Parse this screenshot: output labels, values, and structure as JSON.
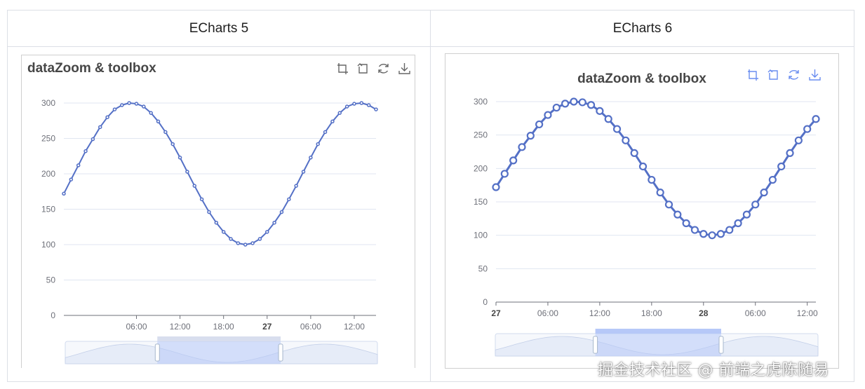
{
  "table": {
    "headers": [
      "ECharts 5",
      "ECharts 6"
    ]
  },
  "watermark": "掘金技术社区 @ 前端之虎陈随易",
  "colors": {
    "v5_line": "#5470c6",
    "v6_line": "#5470c6",
    "v6_toolbox": "#6a8df0",
    "v5_toolbox": "#666666",
    "zoom_fill": "#dbe4ff"
  },
  "toolbox_icons": [
    "zoom-icon",
    "zoom-back-icon",
    "restore-icon",
    "save-image-icon"
  ],
  "chart_data": [
    {
      "type": "line",
      "version": "ECharts 5",
      "title": "dataZoom & toolbox",
      "title_align": "left",
      "ylim": [
        0,
        300
      ],
      "y_ticks": [
        0,
        50,
        100,
        150,
        200,
        250,
        300
      ],
      "x_range_hours": [
        20,
        63
      ],
      "x_tick_hours": [
        30,
        36,
        42,
        48,
        54,
        60
      ],
      "x_tick_labels": [
        "06:00",
        "12:00",
        "18:00",
        "27",
        "06:00",
        "12:00"
      ],
      "x_tick_bold": [
        false,
        false,
        false,
        true,
        false,
        false
      ],
      "x_hours": [
        20,
        21,
        22,
        23,
        24,
        25,
        26,
        27,
        28,
        29,
        30,
        31,
        32,
        33,
        34,
        35,
        36,
        37,
        38,
        39,
        40,
        41,
        42,
        43,
        44,
        45,
        46,
        47,
        48,
        49,
        50,
        51,
        52,
        53,
        54,
        55,
        56,
        57,
        58,
        59,
        60,
        61,
        62,
        63
      ],
      "values": [
        172,
        192,
        212,
        232,
        249,
        266,
        280,
        291,
        297,
        300,
        299,
        295,
        286,
        274,
        259,
        242,
        223,
        203,
        183,
        164,
        146,
        131,
        118,
        108,
        102,
        100,
        102,
        108,
        118,
        131,
        146,
        164,
        183,
        203,
        223,
        242,
        259,
        274,
        286,
        295,
        299,
        300,
        297,
        291
      ],
      "slider": {
        "window_start": 0.295,
        "window_end": 0.69
      }
    },
    {
      "type": "line",
      "version": "ECharts 6",
      "title": "dataZoom & toolbox",
      "title_align": "center",
      "ylim": [
        0,
        300
      ],
      "y_ticks": [
        0,
        50,
        100,
        150,
        200,
        250,
        300
      ],
      "x_range_hours": [
        24,
        61
      ],
      "x_tick_hours": [
        24,
        30,
        36,
        42,
        48,
        54,
        60
      ],
      "x_tick_labels": [
        "27",
        "06:00",
        "12:00",
        "18:00",
        "28",
        "06:00",
        "12:00"
      ],
      "x_tick_bold": [
        true,
        false,
        false,
        false,
        true,
        false,
        false
      ],
      "x_hours": [
        24,
        25,
        26,
        27,
        28,
        29,
        30,
        31,
        32,
        33,
        34,
        35,
        36,
        37,
        38,
        39,
        40,
        41,
        42,
        43,
        44,
        45,
        46,
        47,
        48,
        49,
        50,
        51,
        52,
        53,
        54,
        55,
        56,
        57,
        58,
        59,
        60,
        61
      ],
      "values": [
        172,
        192,
        212,
        232,
        249,
        266,
        280,
        291,
        297,
        300,
        299,
        295,
        286,
        274,
        259,
        242,
        223,
        203,
        183,
        164,
        146,
        131,
        118,
        108,
        102,
        100,
        102,
        108,
        118,
        131,
        146,
        164,
        183,
        203,
        223,
        242,
        259,
        274
      ],
      "slider": {
        "window_start": 0.31,
        "window_end": 0.7
      }
    }
  ]
}
